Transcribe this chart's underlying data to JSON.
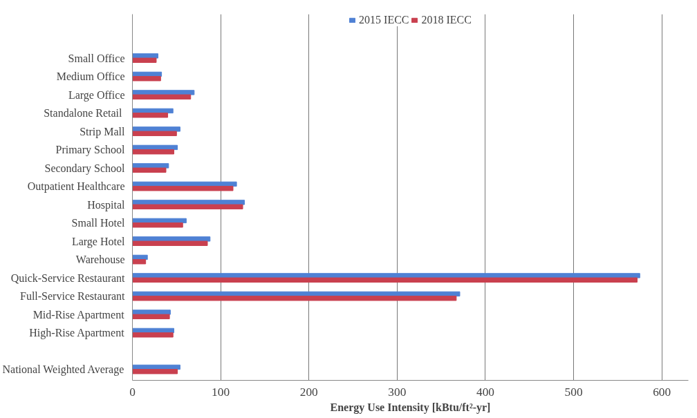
{
  "chart_data": {
    "type": "bar",
    "orientation": "horizontal",
    "categories": [
      "Small Office",
      "Medium Office",
      "Large Office",
      "Standalone  Retail",
      "Strip Mall",
      "Primary School",
      "Secondary School",
      "Outpatient Healthcare",
      "Hospital",
      "Small Hotel",
      "Large Hotel",
      "Warehouse",
      "Quick-Service Restaurant",
      "Full-Service Restaurant",
      "Mid-Rise Apartment",
      "High-Rise Apartment",
      null,
      "National Weighted Average"
    ],
    "series": [
      {
        "name": "2015 IECC",
        "color": "#4f81d4",
        "values": [
          29,
          33,
          70,
          46,
          54,
          51,
          41,
          118,
          127,
          61,
          88,
          17,
          575,
          371,
          43,
          47,
          null,
          54
        ]
      },
      {
        "name": "2018 IECC",
        "color": "#c9404f",
        "values": [
          27,
          32,
          66,
          40,
          50,
          47,
          38,
          114,
          125,
          57,
          85,
          15,
          572,
          367,
          42,
          46,
          null,
          51
        ]
      }
    ],
    "xlabel": "Energy Use Intensity [kBtu/ft²-yr]",
    "xlim": [
      0,
      630
    ],
    "xticks": [
      0,
      100,
      200,
      300,
      400,
      500,
      600
    ],
    "grid": "x",
    "legend": "top"
  }
}
